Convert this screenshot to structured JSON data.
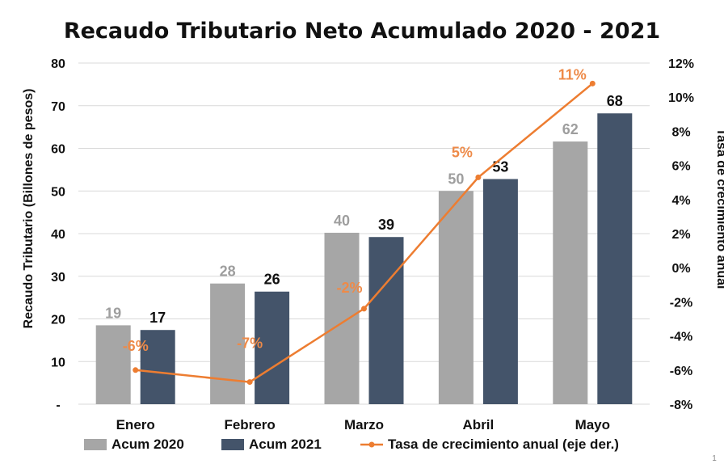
{
  "chart_data": {
    "type": "bar",
    "title": "Recaudo Tributario Neto Acumulado 2020 - 2021",
    "ylabel": "Recaudo Tributario (Billones de pesos)",
    "y2label": "Tasa de crecimiento anual",
    "categories": [
      "Enero",
      "Febrero",
      "Marzo",
      "Abril",
      "Mayo"
    ],
    "ylim": [
      0,
      80
    ],
    "y_ticks": [
      {
        "value": 80,
        "label": "80"
      },
      {
        "value": 70,
        "label": "70"
      },
      {
        "value": 60,
        "label": "60"
      },
      {
        "value": 50,
        "label": "50"
      },
      {
        "value": 40,
        "label": "40"
      },
      {
        "value": 30,
        "label": "30"
      },
      {
        "value": 20,
        "label": "20"
      },
      {
        "value": 10,
        "label": "10"
      },
      {
        "value": 0,
        "label": "-"
      }
    ],
    "y2lim": [
      -8,
      12
    ],
    "y2_ticks": [
      {
        "value": 12,
        "label": "12%"
      },
      {
        "value": 10,
        "label": "10%"
      },
      {
        "value": 8,
        "label": "8%"
      },
      {
        "value": 6,
        "label": "6%"
      },
      {
        "value": 4,
        "label": "4%"
      },
      {
        "value": 2,
        "label": "2%"
      },
      {
        "value": 0,
        "label": "0%"
      },
      {
        "value": -2,
        "label": "-2%"
      },
      {
        "value": -4,
        "label": "-4%"
      },
      {
        "value": -6,
        "label": "-6%"
      },
      {
        "value": -8,
        "label": "-8%"
      }
    ],
    "series": [
      {
        "name": "Acum 2020",
        "type": "bar",
        "axis": "left",
        "color": "#a6a6a6",
        "values": [
          18.5,
          28.3,
          40.2,
          50.0,
          61.6
        ],
        "labels": [
          "19",
          "28",
          "40",
          "50",
          "62"
        ]
      },
      {
        "name": "Acum 2021",
        "type": "bar",
        "axis": "left",
        "color": "#44546a",
        "values": [
          17.4,
          26.4,
          39.2,
          52.8,
          68.2
        ],
        "labels": [
          "17",
          "26",
          "39",
          "53",
          "68"
        ]
      },
      {
        "name": "Tasa de crecimiento anual (eje der.)",
        "type": "line",
        "axis": "right",
        "color": "#ed7d31",
        "values": [
          -6.0,
          -6.7,
          -2.4,
          5.3,
          10.8
        ],
        "labels": [
          "-6%",
          "-7%",
          "-2%",
          "5%",
          "11%"
        ]
      }
    ],
    "legend_position": "bottom",
    "grid": "horizontal"
  },
  "page_number": "1"
}
